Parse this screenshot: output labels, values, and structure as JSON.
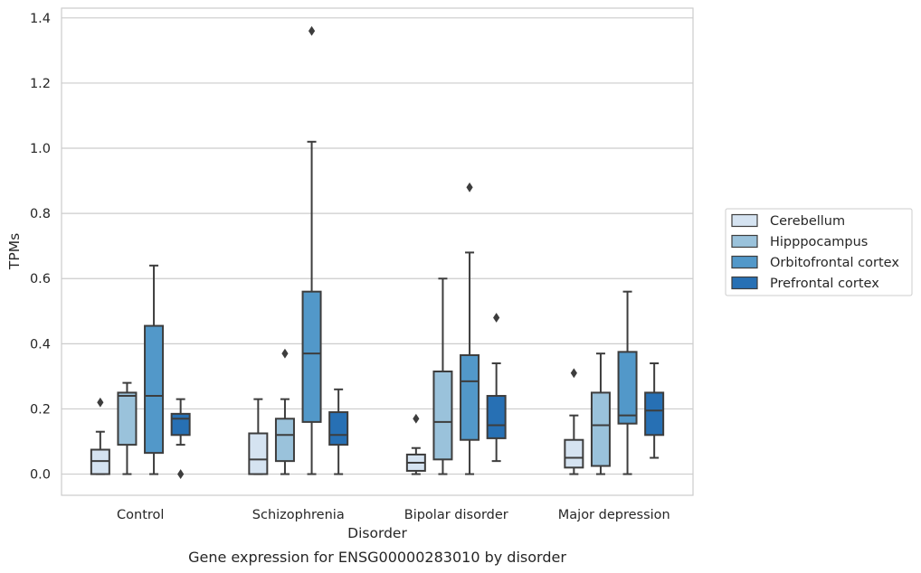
{
  "chart_data": {
    "type": "box",
    "caption": "Gene expression for ENSG00000283010 by disorder",
    "xlabel": "Disorder",
    "ylabel": "TPMs",
    "categories": [
      "Control",
      "Schizophrenia",
      "Bipolar disorder",
      "Major depression"
    ],
    "ylim": [
      -0.065,
      1.43
    ],
    "yticks": [
      0.0,
      0.2,
      0.4,
      0.6,
      0.8,
      1.0,
      1.2,
      1.4
    ],
    "ytick_labels": [
      "0.0",
      "0.2",
      "0.4",
      "0.6",
      "0.8",
      "1.0",
      "1.2",
      "1.4"
    ],
    "grid": "horizontal",
    "legend_position": "right, outside plot",
    "series": [
      {
        "name": "Cerebellum",
        "color": "#d5e3f1",
        "boxes": [
          {
            "whislo": 0.0,
            "q1": 0.0,
            "med": 0.04,
            "q3": 0.075,
            "whishi": 0.13,
            "fliers": [
              0.22
            ]
          },
          {
            "whislo": 0.0,
            "q1": 0.0,
            "med": 0.045,
            "q3": 0.125,
            "whishi": 0.23,
            "fliers": []
          },
          {
            "whislo": 0.0,
            "q1": 0.01,
            "med": 0.035,
            "q3": 0.06,
            "whishi": 0.08,
            "fliers": [
              0.17
            ]
          },
          {
            "whislo": 0.0,
            "q1": 0.02,
            "med": 0.05,
            "q3": 0.105,
            "whishi": 0.18,
            "fliers": [
              0.31
            ]
          }
        ]
      },
      {
        "name": "Hipppocampus",
        "color": "#9ac2db",
        "boxes": [
          {
            "whislo": 0.0,
            "q1": 0.09,
            "med": 0.24,
            "q3": 0.25,
            "whishi": 0.28,
            "fliers": []
          },
          {
            "whislo": 0.0,
            "q1": 0.04,
            "med": 0.12,
            "q3": 0.17,
            "whishi": 0.23,
            "fliers": [
              0.37
            ]
          },
          {
            "whislo": 0.0,
            "q1": 0.045,
            "med": 0.16,
            "q3": 0.315,
            "whishi": 0.6,
            "fliers": []
          },
          {
            "whislo": 0.0,
            "q1": 0.025,
            "med": 0.15,
            "q3": 0.25,
            "whishi": 0.37,
            "fliers": []
          }
        ]
      },
      {
        "name": "Orbitofrontal cortex",
        "color": "#5298c9",
        "boxes": [
          {
            "whislo": 0.0,
            "q1": 0.065,
            "med": 0.24,
            "q3": 0.455,
            "whishi": 0.64,
            "fliers": []
          },
          {
            "whislo": 0.0,
            "q1": 0.16,
            "med": 0.37,
            "q3": 0.56,
            "whishi": 1.02,
            "fliers": [
              1.36
            ]
          },
          {
            "whislo": 0.0,
            "q1": 0.105,
            "med": 0.285,
            "q3": 0.365,
            "whishi": 0.68,
            "fliers": [
              0.88
            ]
          },
          {
            "whislo": 0.0,
            "q1": 0.155,
            "med": 0.18,
            "q3": 0.375,
            "whishi": 0.56,
            "fliers": []
          }
        ]
      },
      {
        "name": "Prefrontal cortex",
        "color": "#2770b4",
        "boxes": [
          {
            "whislo": 0.09,
            "q1": 0.12,
            "med": 0.17,
            "q3": 0.185,
            "whishi": 0.23,
            "fliers": [
              0.0
            ]
          },
          {
            "whislo": 0.0,
            "q1": 0.09,
            "med": 0.12,
            "q3": 0.19,
            "whishi": 0.26,
            "fliers": []
          },
          {
            "whislo": 0.04,
            "q1": 0.11,
            "med": 0.15,
            "q3": 0.24,
            "whishi": 0.34,
            "fliers": [
              0.48
            ]
          },
          {
            "whislo": 0.05,
            "q1": 0.12,
            "med": 0.195,
            "q3": 0.25,
            "whishi": 0.34,
            "fliers": []
          }
        ]
      }
    ]
  }
}
